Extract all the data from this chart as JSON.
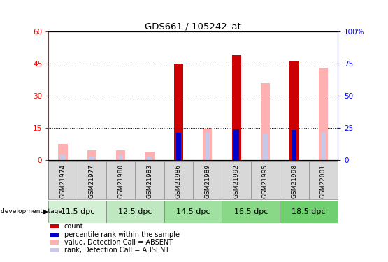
{
  "title": "GDS661 / 105242_at",
  "samples": [
    "GSM21974",
    "GSM21977",
    "GSM21980",
    "GSM21983",
    "GSM21986",
    "GSM21989",
    "GSM21992",
    "GSM21995",
    "GSM21998",
    "GSM22001"
  ],
  "stage_groups": [
    [
      0,
      1,
      "11.5 dpc"
    ],
    [
      2,
      3,
      "12.5 dpc"
    ],
    [
      4,
      5,
      "14.5 dpc"
    ],
    [
      6,
      7,
      "16.5 dpc"
    ],
    [
      8,
      9,
      "18.5 dpc"
    ]
  ],
  "stage_colors": [
    "#d4f0d4",
    "#c0e8c0",
    "#a0e0a0",
    "#88d888",
    "#70d070"
  ],
  "count_values": [
    0,
    0,
    0,
    0,
    44.5,
    0,
    49,
    0,
    46,
    0
  ],
  "percentile_values": [
    0,
    0,
    0,
    0,
    21,
    0,
    24,
    0,
    23,
    0
  ],
  "absent_value_values": [
    7.5,
    4.5,
    4.5,
    4.0,
    0,
    14.5,
    0,
    36.0,
    0,
    43.0
  ],
  "absent_rank_values": [
    3.5,
    2.5,
    3.5,
    2.5,
    0,
    21.0,
    0,
    20.0,
    0,
    21.0
  ],
  "ylim_left": [
    0,
    60
  ],
  "ylim_right": [
    0,
    100
  ],
  "yticks_left": [
    0,
    15,
    30,
    45,
    60
  ],
  "yticks_right": [
    0,
    25,
    50,
    75,
    100
  ],
  "color_count": "#cc0000",
  "color_percentile": "#0000cc",
  "color_absent_value": "#ffb0b0",
  "color_absent_rank": "#c8c8e8",
  "color_sample_bg": "#d8d8d8",
  "bar_width": 0.32,
  "legend_labels": [
    "count",
    "percentile rank within the sample",
    "value, Detection Call = ABSENT",
    "rank, Detection Call = ABSENT"
  ],
  "legend_colors": [
    "#cc0000",
    "#0000cc",
    "#ffb0b0",
    "#c8c8e8"
  ]
}
